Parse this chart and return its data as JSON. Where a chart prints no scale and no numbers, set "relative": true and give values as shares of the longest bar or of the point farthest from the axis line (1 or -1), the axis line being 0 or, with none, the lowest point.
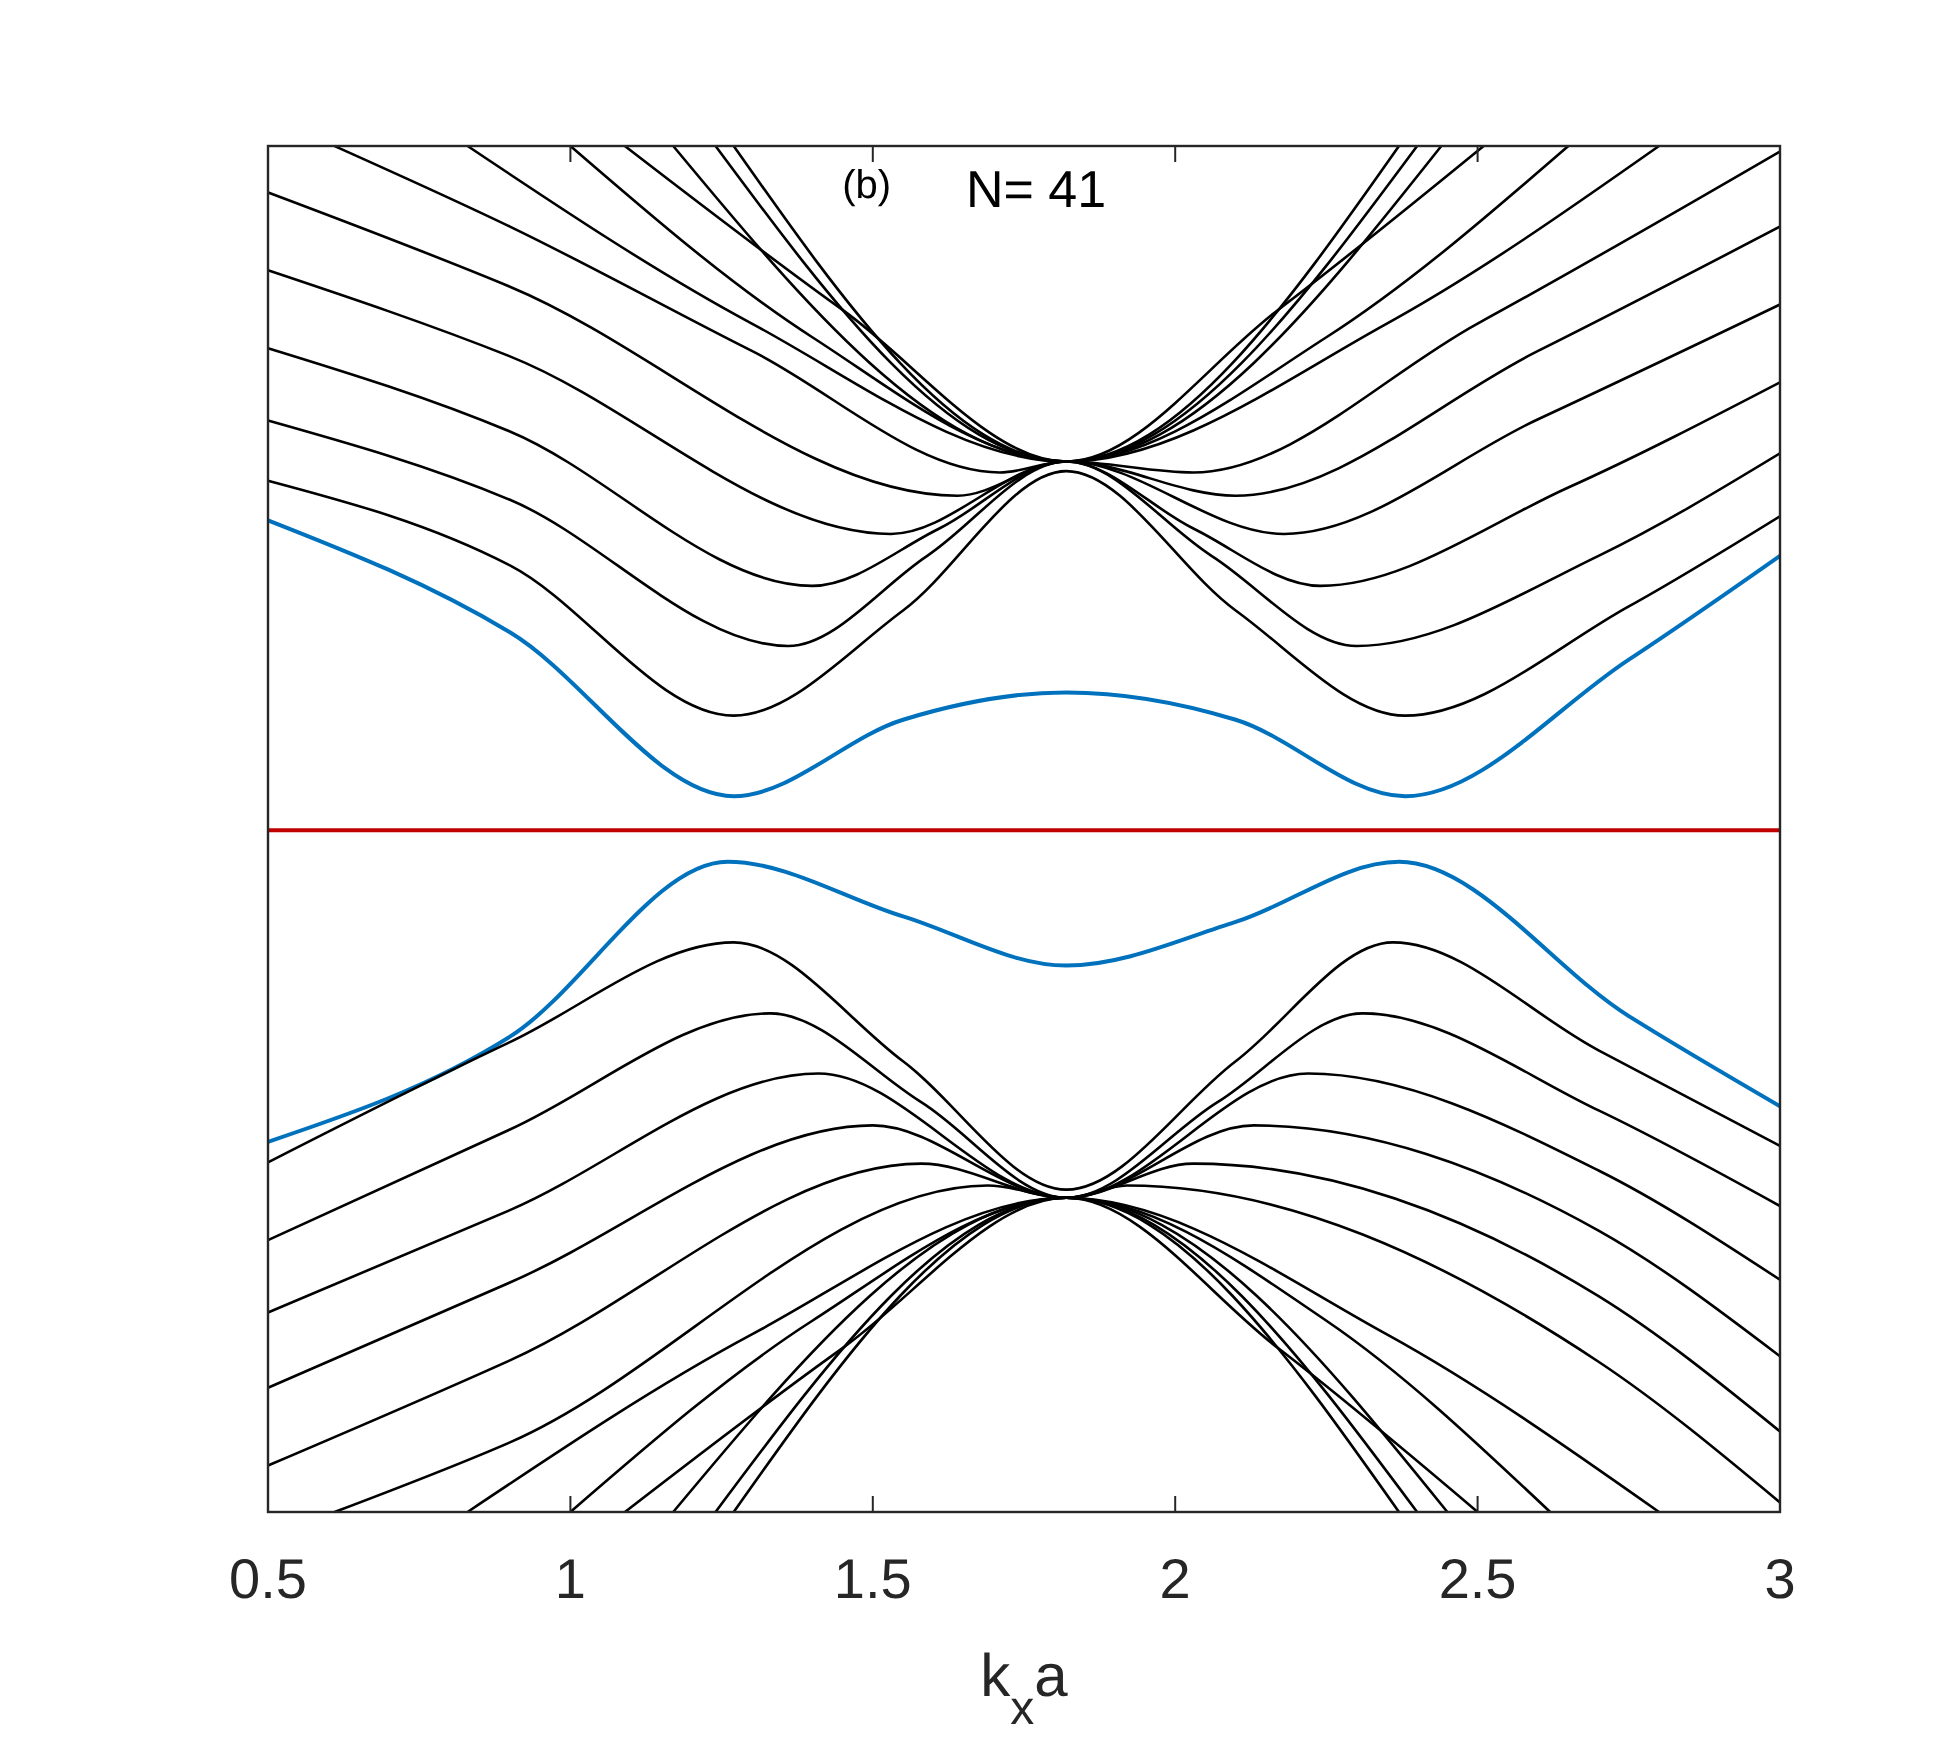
{
  "chart_data": {
    "type": "line",
    "relative": true,
    "xlabel": "k$_{x}$a",
    "xlim": [
      0.5,
      3
    ],
    "xticks": [
      0.5,
      1,
      1.5,
      2,
      2.5,
      3
    ],
    "annotations": [
      "(b)",
      "N= 41"
    ],
    "series": [
      {
        "color": "#000000",
        "x": [
          0.5,
          0.9,
          1.27,
          1.55,
          1.82,
          2.1,
          2.38,
          2.75,
          3
        ],
        "values": [
          0.755,
          0.693,
          0.583,
          0.66,
          0.762,
          0.66,
          0.583,
          0.663,
          0.729
        ]
      },
      {
        "color": "#000000",
        "x": [
          0.5,
          0.9,
          1.36,
          1.59,
          1.82,
          2.06,
          2.3,
          2.7,
          3
        ],
        "values": [
          0.799,
          0.741,
          0.634,
          0.7,
          0.769,
          0.7,
          0.634,
          0.7,
          0.775
        ]
      },
      {
        "color": "#000000",
        "x": [
          0.5,
          0.9,
          1.4,
          1.61,
          1.82,
          2.03,
          2.24,
          2.65,
          3
        ],
        "values": [
          0.852,
          0.791,
          0.678,
          0.72,
          0.769,
          0.72,
          0.678,
          0.75,
          0.827
        ]
      },
      {
        "color": "#000000",
        "x": [
          0.5,
          0.9,
          1.53,
          1.82,
          2.18,
          2.6,
          3
        ],
        "values": [
          0.909,
          0.846,
          0.716,
          0.769,
          0.716,
          0.8,
          0.884
        ]
      },
      {
        "color": "#000000",
        "x": [
          0.5,
          0.9,
          1.64,
          1.82,
          2.1,
          2.6,
          3
        ],
        "values": [
          0.966,
          0.897,
          0.744,
          0.769,
          0.744,
          0.85,
          0.941
        ]
      },
      {
        "color": "#000000",
        "x": [
          0.61,
          0.9,
          1.3,
          1.71,
          1.82,
          2.03,
          2.5,
          3
        ],
        "values": [
          1,
          0.941,
          0.85,
          0.761,
          0.769,
          0.761,
          0.87,
          0.996
        ]
      },
      {
        "color": "#000000",
        "x": [
          0.83,
          1.3,
          1.82,
          2.35,
          2.8
        ],
        "values": [
          1,
          0.87,
          0.769,
          0.87,
          1
        ]
      },
      {
        "color": "#000000",
        "x": [
          1,
          1.4,
          1.82,
          2.25,
          2.65
        ],
        "values": [
          1,
          0.86,
          0.769,
          0.86,
          1
        ]
      },
      {
        "color": "#000000",
        "x": [
          1.09,
          1.45,
          1.82,
          2.17,
          2.51
        ],
        "values": [
          1,
          0.88,
          0.769,
          0.88,
          1
        ]
      },
      {
        "color": "#000000",
        "x": [
          1.17,
          1.82,
          2.44
        ],
        "values": [
          1,
          0.769,
          1
        ]
      },
      {
        "color": "#000000",
        "x": [
          1.24,
          1.82,
          2.4
        ],
        "values": [
          1,
          0.769,
          1
        ]
      },
      {
        "color": "#000000",
        "x": [
          1.27,
          1.82,
          2.37
        ],
        "values": [
          1,
          0.769,
          1
        ]
      },
      {
        "color": "#0072bd",
        "x": [
          0.5,
          0.9,
          1.27,
          1.55,
          1.82,
          2.1,
          2.38,
          2.75,
          3
        ],
        "values": [
          0.726,
          0.644,
          0.524,
          0.58,
          0.6,
          0.58,
          0.524,
          0.624,
          0.7
        ]
      },
      {
        "color": "#c00000",
        "x": [
          0.5,
          3
        ],
        "values": [
          0.499,
          0.499
        ]
      },
      {
        "color": "#0072bd",
        "x": [
          0.5,
          0.9,
          1.26,
          1.55,
          1.82,
          2.1,
          2.37,
          2.75,
          3
        ],
        "values": [
          0.271,
          0.348,
          0.476,
          0.436,
          0.4,
          0.432,
          0.476,
          0.363,
          0.297
        ]
      },
      {
        "color": "#000000",
        "x": [
          0.5,
          0.9,
          1.27,
          1.55,
          1.82,
          2.1,
          2.36,
          2.7,
          3
        ],
        "values": [
          0.256,
          0.344,
          0.417,
          0.33,
          0.236,
          0.33,
          0.417,
          0.338,
          0.268
        ]
      },
      {
        "color": "#000000",
        "x": [
          0.5,
          0.9,
          1.33,
          1.58,
          1.82,
          2.07,
          2.31,
          2.7,
          3
        ],
        "values": [
          0.199,
          0.28,
          0.365,
          0.3,
          0.23,
          0.3,
          0.365,
          0.294,
          0.224
        ]
      },
      {
        "color": "#000000",
        "x": [
          0.5,
          0.9,
          1.41,
          1.82,
          2.22,
          2.7,
          3
        ],
        "values": [
          0.146,
          0.221,
          0.321,
          0.23,
          0.321,
          0.25,
          0.17
        ]
      },
      {
        "color": "#000000",
        "x": [
          0.5,
          0.9,
          1.5,
          1.82,
          2.13,
          2.7,
          3
        ],
        "values": [
          0.091,
          0.168,
          0.283,
          0.23,
          0.283,
          0.206,
          0.114
        ]
      },
      {
        "color": "#000000",
        "x": [
          0.5,
          0.9,
          1.58,
          1.82,
          2.03,
          2.7,
          3
        ],
        "values": [
          0.034,
          0.111,
          0.255,
          0.23,
          0.255,
          0.158,
          0.059
        ]
      },
      {
        "color": "#000000",
        "x": [
          0.61,
          0.9,
          1.69,
          1.82,
          1.92,
          2.7,
          3
        ],
        "values": [
          0,
          0.051,
          0.239,
          0.23,
          0.239,
          0.11,
          0.007
        ]
      },
      {
        "color": "#000000",
        "x": [
          0.83,
          1.3,
          1.82,
          2.35,
          2.8
        ],
        "values": [
          0,
          0.13,
          0.23,
          0.13,
          0
        ]
      },
      {
        "color": "#000000",
        "x": [
          1,
          1.4,
          1.82,
          2.25,
          2.62
        ],
        "values": [
          0,
          0.14,
          0.23,
          0.14,
          0
        ]
      },
      {
        "color": "#000000",
        "x": [
          1.09,
          1.45,
          1.82,
          2.17,
          2.5
        ],
        "values": [
          0,
          0.12,
          0.23,
          0.12,
          0
        ]
      },
      {
        "color": "#000000",
        "x": [
          1.17,
          1.82,
          2.45
        ],
        "values": [
          0,
          0.23,
          0
        ]
      },
      {
        "color": "#000000",
        "x": [
          1.24,
          1.82,
          2.4
        ],
        "values": [
          0,
          0.23,
          0
        ]
      },
      {
        "color": "#000000",
        "x": [
          1.27,
          1.82,
          2.37
        ],
        "values": [
          0,
          0.23,
          0
        ]
      }
    ]
  }
}
